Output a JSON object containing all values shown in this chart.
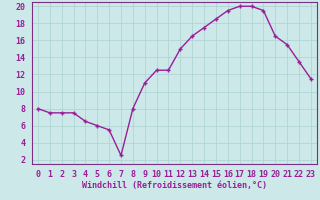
{
  "x": [
    0,
    1,
    2,
    3,
    4,
    5,
    6,
    7,
    8,
    9,
    10,
    11,
    12,
    13,
    14,
    15,
    16,
    17,
    18,
    19,
    20,
    21,
    22,
    23
  ],
  "y": [
    8,
    7.5,
    7.5,
    7.5,
    6.5,
    6,
    5.5,
    2.5,
    8,
    11,
    12.5,
    12.5,
    15,
    16.5,
    17.5,
    18.5,
    19.5,
    20,
    20,
    19.5,
    16.5,
    15.5,
    13.5,
    11.5
  ],
  "line_color": "#991f99",
  "marker": "+",
  "marker_size": 3.5,
  "marker_linewidth": 1.0,
  "background_color": "#cce8e8",
  "grid_color": "#b0d4d4",
  "xlabel": "Windchill (Refroidissement éolien,°C)",
  "xlabel_fontsize": 6.0,
  "tick_fontsize": 6.0,
  "ylim": [
    1.5,
    20.5
  ],
  "xlim": [
    -0.5,
    23.5
  ],
  "yticks": [
    2,
    4,
    6,
    8,
    10,
    12,
    14,
    16,
    18,
    20
  ],
  "xticks": [
    0,
    1,
    2,
    3,
    4,
    5,
    6,
    7,
    8,
    9,
    10,
    11,
    12,
    13,
    14,
    15,
    16,
    17,
    18,
    19,
    20,
    21,
    22,
    23
  ],
  "line_width": 1.0,
  "spine_color": "#7a3080"
}
